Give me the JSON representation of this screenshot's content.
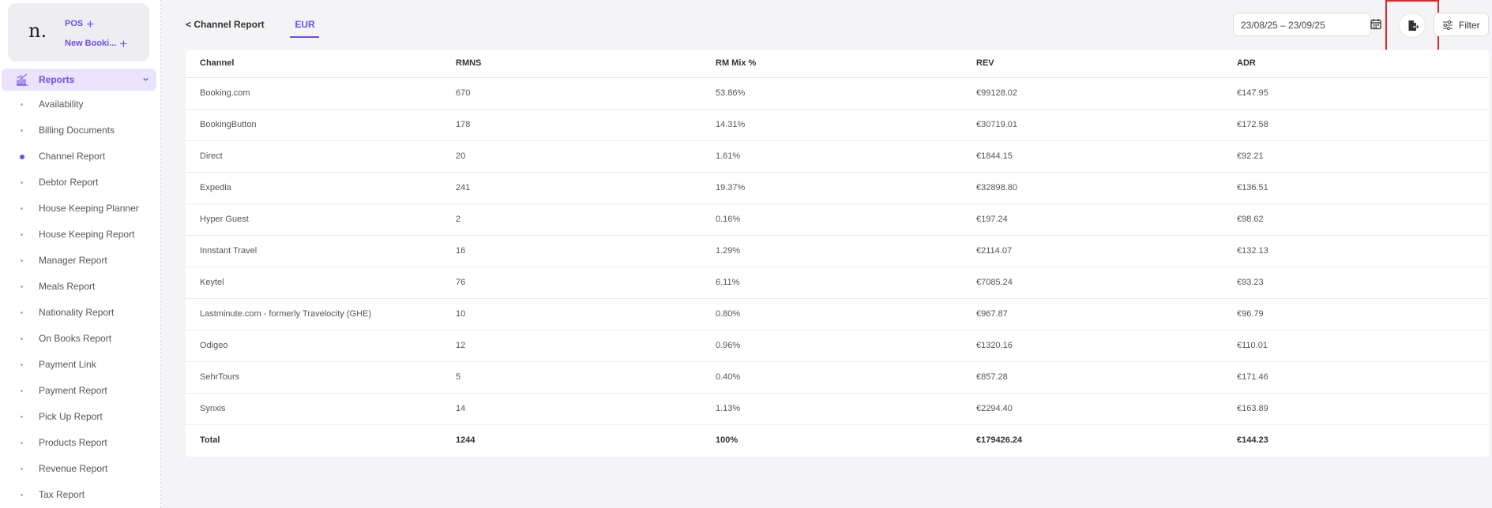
{
  "sidebar": {
    "quick_links": [
      {
        "label": "POS"
      },
      {
        "label": "New Booki..."
      }
    ],
    "section": {
      "label": "Reports",
      "icon": "bar-chart-icon"
    },
    "items": [
      {
        "label": "Availability",
        "active": false
      },
      {
        "label": "Billing Documents",
        "active": false
      },
      {
        "label": "Channel Report",
        "active": true
      },
      {
        "label": "Debtor Report",
        "active": false
      },
      {
        "label": "House Keeping Planner",
        "active": false
      },
      {
        "label": "House Keeping Report",
        "active": false
      },
      {
        "label": "Manager Report",
        "active": false
      },
      {
        "label": "Meals Report",
        "active": false
      },
      {
        "label": "Nationality Report",
        "active": false
      },
      {
        "label": "On Books Report",
        "active": false
      },
      {
        "label": "Payment Link",
        "active": false
      },
      {
        "label": "Payment Report",
        "active": false
      },
      {
        "label": "Pick Up Report",
        "active": false
      },
      {
        "label": "Products Report",
        "active": false
      },
      {
        "label": "Revenue Report",
        "active": false
      },
      {
        "label": "Tax Report",
        "active": false
      }
    ]
  },
  "header": {
    "back_label": "< Channel Report",
    "currency_tab": "EUR",
    "date_range": "23/08/25 – 23/09/25",
    "filter_label": "Filter"
  },
  "table": {
    "columns": [
      "Channel",
      "RMNS",
      "RM Mix %",
      "REV",
      "ADR"
    ],
    "rows": [
      [
        "Booking.com",
        "670",
        "53.86%",
        "€99128.02",
        "€147.95"
      ],
      [
        "BookingButton",
        "178",
        "14.31%",
        "€30719.01",
        "€172.58"
      ],
      [
        "Direct",
        "20",
        "1.61%",
        "€1844.15",
        "€92.21"
      ],
      [
        "Expedia",
        "241",
        "19.37%",
        "€32898.80",
        "€136.51"
      ],
      [
        "Hyper Guest",
        "2",
        "0.16%",
        "€197.24",
        "€98.62"
      ],
      [
        "Innstant Travel",
        "16",
        "1.29%",
        "€2114.07",
        "€132.13"
      ],
      [
        "Keytel",
        "76",
        "6.11%",
        "€7085.24",
        "€93.23"
      ],
      [
        "Lastminute.com - formerly Travelocity (GHE)",
        "10",
        "0.80%",
        "€967.87",
        "€96.79"
      ],
      [
        "Odigeo",
        "12",
        "0.96%",
        "€1320.16",
        "€110.01"
      ],
      [
        "SehrTours",
        "5",
        "0.40%",
        "€857.28",
        "€171.46"
      ],
      [
        "Synxis",
        "14",
        "1.13%",
        "€2294.40",
        "€163.89"
      ]
    ],
    "total": [
      "Total",
      "1244",
      "100%",
      "€179426.24",
      "€144.23"
    ]
  },
  "colors": {
    "accent": "#6d4fe8",
    "highlight": "#e0222b"
  }
}
